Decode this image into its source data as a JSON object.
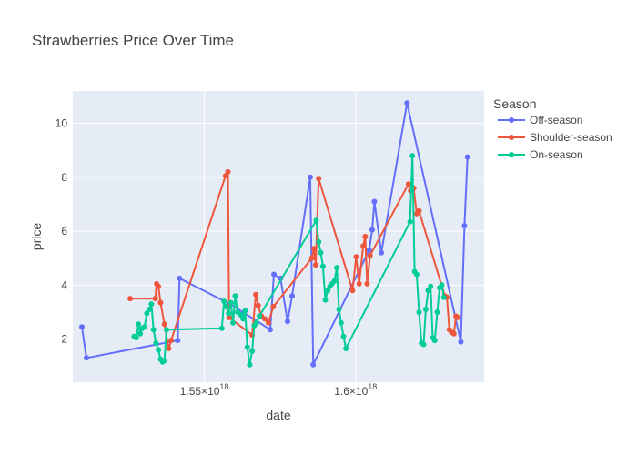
{
  "chart_data": {
    "type": "line",
    "title": "Strawberries Price Over Time",
    "xlabel": "date",
    "ylabel": "price",
    "x_exponent_suffix": "×10",
    "x_exponent_value": "18",
    "xlim": [
      1.5065e+18,
      1.6425e+18
    ],
    "ylim": [
      0.4,
      11.2
    ],
    "x_ticks": [
      {
        "value": 1.55e+18,
        "mantissa": "1.55"
      },
      {
        "value": 1.6e+18,
        "mantissa": "1.6"
      }
    ],
    "y_ticks": [
      2,
      4,
      6,
      8,
      10
    ],
    "grid": true,
    "legend_title": "Season",
    "legend_position": "top-right, outside plot",
    "series": [
      {
        "name": "Off-season",
        "color": "#636efa",
        "x": [
          1.5095e+18,
          1.511e+18,
          1.5412e+18,
          1.5418e+18,
          1.5585e+18,
          1.5718e+18,
          1.573e+18,
          1.5752e+18,
          1.5775e+18,
          1.579e+18,
          1.585e+18,
          1.586e+18,
          1.6045e+18,
          1.6055e+18,
          1.6062e+18,
          1.6085e+18,
          1.617e+18,
          1.6348e+18,
          1.636e+18,
          1.637e+18
        ],
        "y": [
          2.45,
          1.3,
          1.95,
          4.25,
          3.3,
          2.35,
          4.4,
          4.25,
          2.65,
          3.6,
          8.0,
          1.05,
          5.3,
          6.05,
          7.1,
          5.2,
          10.75,
          1.9,
          6.2,
          8.75
        ]
      },
      {
        "name": "Shoulder-season",
        "color": "#ef553b",
        "x": [
          1.5255e+18,
          1.5338e+18,
          1.5342e+18,
          1.5348e+18,
          1.5355e+18,
          1.5368e+18,
          1.5382e+18,
          1.539e+18,
          1.557e+18,
          1.5578e+18,
          1.5582e+18,
          1.5658e+18,
          1.567e+18,
          1.5678e+18,
          1.5688e+18,
          1.57e+18,
          1.5712e+18,
          1.5728e+18,
          1.5855e+18,
          1.5862e+18,
          1.5868e+18,
          1.5878e+18,
          1.599e+18,
          1.6002e+18,
          1.6012e+18,
          1.6025e+18,
          1.6032e+18,
          1.6038e+18,
          1.6048e+18,
          1.6175e+18,
          1.6182e+18,
          1.6192e+18,
          1.6202e+18,
          1.621e+18,
          1.6295e+18,
          1.6302e+18,
          1.631e+18,
          1.6318e+18,
          1.6325e+18,
          1.6332e+18,
          1.6338e+18
        ],
        "y": [
          3.5,
          3.5,
          4.05,
          3.95,
          3.35,
          2.55,
          1.65,
          1.95,
          8.05,
          8.2,
          2.8,
          2.15,
          3.65,
          3.25,
          2.85,
          2.75,
          2.6,
          3.2,
          5.0,
          5.35,
          4.75,
          7.95,
          3.8,
          5.05,
          4.05,
          5.45,
          5.8,
          4.05,
          5.1,
          7.75,
          7.5,
          7.6,
          6.65,
          6.75,
          3.6,
          3.55,
          2.35,
          2.25,
          2.2,
          2.85,
          2.8
        ]
      },
      {
        "name": "On-season",
        "color": "#00cc96",
        "x": [
          1.5268e+18,
          1.5275e+18,
          1.5282e+18,
          1.5288e+18,
          1.5295e+18,
          1.5302e+18,
          1.531e+18,
          1.5318e+18,
          1.5325e+18,
          1.5332e+18,
          1.534e+18,
          1.5348e+18,
          1.5355e+18,
          1.5362e+18,
          1.5368e+18,
          1.5375e+18,
          1.5558e+18,
          1.5565e+18,
          1.5572e+18,
          1.558e+18,
          1.5588e+18,
          1.5595e+18,
          1.5602e+18,
          1.561e+18,
          1.562e+18,
          1.5628e+18,
          1.5635e+18,
          1.5642e+18,
          1.565e+18,
          1.5658e+18,
          1.5665e+18,
          1.5672e+18,
          1.5682e+18,
          1.587e+18,
          1.5878e+18,
          1.5885e+18,
          1.5892e+18,
          1.59e+18,
          1.5908e+18,
          1.5915e+18,
          1.5922e+18,
          1.593e+18,
          1.5938e+18,
          1.5945e+18,
          1.5952e+18,
          1.596e+18,
          1.5968e+18,
          1.618e+18,
          1.6188e+18,
          1.6195e+18,
          1.6202e+18,
          1.621e+18,
          1.6218e+18,
          1.6225e+18,
          1.6232e+18,
          1.624e+18,
          1.6248e+18,
          1.6255e+18,
          1.6262e+18,
          1.627e+18,
          1.6278e+18,
          1.6285e+18,
          1.6292e+18
        ],
        "y": [
          2.1,
          2.05,
          2.55,
          2.2,
          2.4,
          2.45,
          2.95,
          3.1,
          3.3,
          2.35,
          1.85,
          1.6,
          1.25,
          1.15,
          1.2,
          2.35,
          2.4,
          3.4,
          3.2,
          2.95,
          3.35,
          2.6,
          3.6,
          3.0,
          2.9,
          2.75,
          3.05,
          1.7,
          1.05,
          1.55,
          2.5,
          2.6,
          2.85,
          6.4,
          5.6,
          5.2,
          4.7,
          3.45,
          3.8,
          3.95,
          4.05,
          4.15,
          4.65,
          3.1,
          2.6,
          2.1,
          1.65,
          6.35,
          8.8,
          4.5,
          4.4,
          3.0,
          1.85,
          1.8,
          3.1,
          3.8,
          3.95,
          2.05,
          1.95,
          3.0,
          3.9,
          4.0,
          3.55
        ]
      }
    ]
  }
}
